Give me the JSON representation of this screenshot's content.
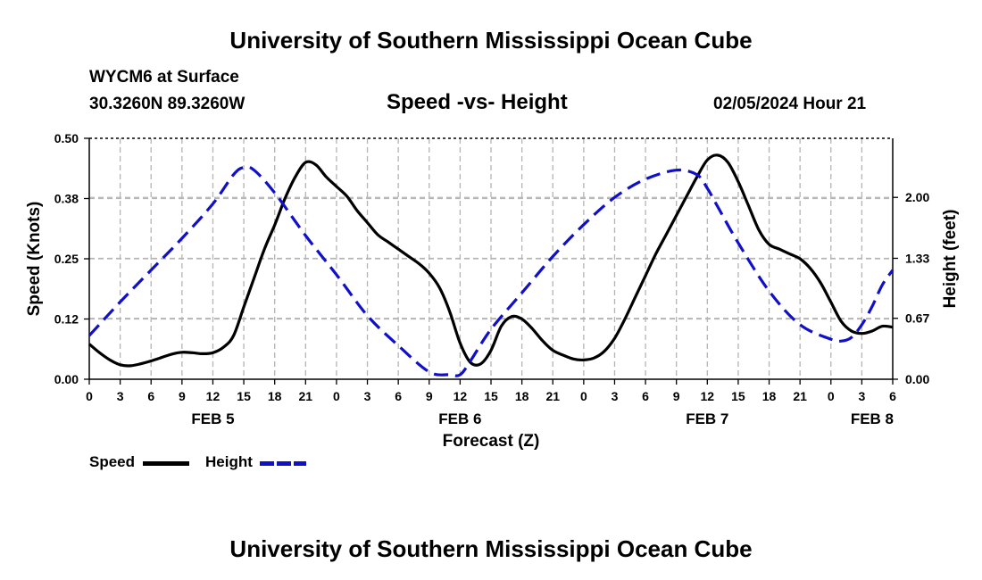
{
  "header": {
    "title_top": "University of Southern Mississippi Ocean Cube",
    "title_bottom": "University of Southern Mississippi Ocean Cube",
    "station": "WYCM6 at Surface",
    "coords": "30.3260N  89.3260W",
    "datetime": "02/05/2024 Hour 21"
  },
  "legend": {
    "speed_label": "Speed",
    "height_label": "Height"
  },
  "colors": {
    "speed": "#000000",
    "height": "#1010c8",
    "grid": "#b4b4b4"
  },
  "chart_data": {
    "type": "line",
    "title": "Speed -vs- Height",
    "xlabel": "Forecast (Z)",
    "ylabel": "Speed (Knots)",
    "y2label": "Height (feet)",
    "x_unit": "hours since FEB 5 00Z",
    "xlim": [
      0,
      78
    ],
    "ylim": [
      0,
      0.5
    ],
    "y2lim": [
      0,
      2.65
    ],
    "x_ticks": [
      0,
      3,
      6,
      9,
      12,
      15,
      18,
      21,
      24,
      27,
      30,
      33,
      36,
      39,
      42,
      45,
      48,
      51,
      54,
      57,
      60,
      63,
      66,
      69,
      72,
      75,
      78
    ],
    "x_tick_labels": [
      "0",
      "3",
      "6",
      "9",
      "12",
      "15",
      "18",
      "21",
      "0",
      "3",
      "6",
      "9",
      "12",
      "15",
      "18",
      "21",
      "0",
      "3",
      "6",
      "9",
      "12",
      "15",
      "18",
      "21",
      "0",
      "3",
      "6"
    ],
    "y_ticks": [
      0,
      0.125,
      0.25,
      0.375,
      0.5
    ],
    "y_tick_labels": [
      "0.00",
      "0.12",
      "0.25",
      "0.38",
      "0.50"
    ],
    "y2_ticks": [
      0,
      0.67,
      1.33,
      2.0
    ],
    "y2_tick_labels": [
      "0.00",
      "0.67",
      "1.33",
      "2.00"
    ],
    "day_labels": [
      {
        "x": 12,
        "label": "FEB 5"
      },
      {
        "x": 36,
        "label": "FEB 6"
      },
      {
        "x": 60,
        "label": "FEB 7"
      },
      {
        "x": 76,
        "label": "FEB 8"
      }
    ],
    "series": [
      {
        "name": "Speed",
        "axis": "left",
        "style": "solid",
        "x": [
          0,
          1,
          2,
          3,
          4,
          5,
          6,
          7,
          8,
          9,
          10,
          11,
          12,
          13,
          14,
          15,
          16,
          17,
          18,
          19,
          20,
          21,
          22,
          23,
          24,
          25,
          26,
          27,
          28,
          29,
          30,
          31,
          32,
          33,
          34,
          35,
          36,
          37,
          38,
          39,
          40,
          41,
          42,
          43,
          44,
          45,
          46,
          47,
          48,
          49,
          50,
          51,
          52,
          53,
          54,
          55,
          56,
          57,
          58,
          59,
          60,
          61,
          62,
          63,
          64,
          65,
          66,
          67,
          68,
          69,
          70,
          71,
          72,
          73,
          74,
          75,
          76,
          77,
          78
        ],
        "values": [
          0.073,
          0.055,
          0.04,
          0.03,
          0.028,
          0.032,
          0.038,
          0.045,
          0.052,
          0.056,
          0.055,
          0.053,
          0.055,
          0.066,
          0.09,
          0.15,
          0.21,
          0.27,
          0.32,
          0.375,
          0.42,
          0.45,
          0.445,
          0.42,
          0.4,
          0.38,
          0.35,
          0.325,
          0.3,
          0.285,
          0.27,
          0.255,
          0.24,
          0.22,
          0.19,
          0.14,
          0.075,
          0.035,
          0.032,
          0.06,
          0.11,
          0.13,
          0.125,
          0.105,
          0.08,
          0.06,
          0.05,
          0.042,
          0.04,
          0.044,
          0.058,
          0.085,
          0.125,
          0.17,
          0.215,
          0.26,
          0.3,
          0.34,
          0.38,
          0.42,
          0.455,
          0.465,
          0.45,
          0.41,
          0.36,
          0.31,
          0.28,
          0.27,
          0.26,
          0.25,
          0.23,
          0.2,
          0.16,
          0.12,
          0.1,
          0.095,
          0.1,
          0.11,
          0.108
        ]
      },
      {
        "name": "Height",
        "axis": "right",
        "style": "dashed",
        "x": [
          0,
          3,
          6,
          9,
          12,
          14,
          15,
          16,
          18,
          21,
          24,
          27,
          30,
          33,
          35,
          36,
          37,
          39,
          42,
          45,
          48,
          51,
          54,
          57,
          59,
          60,
          61,
          63,
          66,
          69,
          72,
          73,
          74,
          75,
          76,
          77,
          78
        ],
        "values": [
          0.48,
          0.85,
          1.2,
          1.55,
          1.93,
          2.25,
          2.33,
          2.3,
          2.05,
          1.58,
          1.15,
          0.7,
          0.37,
          0.08,
          0.05,
          0.05,
          0.2,
          0.55,
          0.95,
          1.35,
          1.7,
          2.0,
          2.2,
          2.3,
          2.25,
          2.1,
          1.9,
          1.5,
          0.97,
          0.6,
          0.44,
          0.42,
          0.46,
          0.6,
          0.8,
          1.04,
          1.2
        ]
      }
    ]
  }
}
